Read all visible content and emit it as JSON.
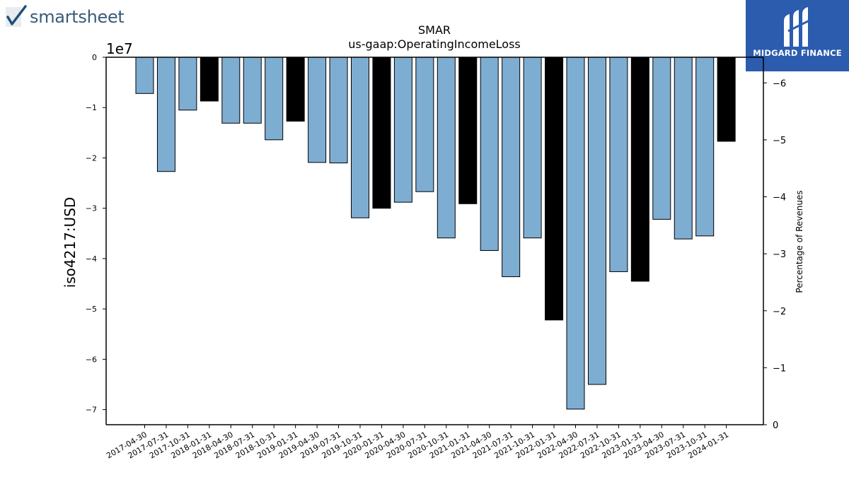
{
  "branding": {
    "left_logo_text": "smartsheet",
    "right_logo_text": "MIDGARD FINANCE",
    "left_logo_icon": "checkmark-icon",
    "right_logo_icon": "midgard-m-icon"
  },
  "chart_data": {
    "type": "bar",
    "title": "SMAR",
    "subtitle": "us-gaap:OperatingIncomeLoss",
    "ylabel": "iso4217:USD",
    "y2label": "Percentage of Revenues",
    "offset_label": "1e7",
    "ylim": [
      -7.3,
      0
    ],
    "y2lim": [
      0,
      -6.45
    ],
    "yticks": [
      0,
      -1,
      -2,
      -3,
      -4,
      -5,
      -6,
      -7
    ],
    "y2ticks": [
      0,
      -1,
      -2,
      -3,
      -4,
      -5,
      -6
    ],
    "ytick_labels": [
      "0",
      "−1",
      "−2",
      "−3",
      "−4",
      "−5",
      "−6",
      "−7"
    ],
    "y2tick_labels": [
      "0",
      "−1",
      "−2",
      "−3",
      "−4",
      "−5",
      "−6"
    ],
    "categories": [
      "2017-04-30",
      "2017-07-31",
      "2017-10-31",
      "2018-01-31",
      "2018-04-30",
      "2018-07-31",
      "2018-10-31",
      "2019-01-31",
      "2019-04-30",
      "2019-07-31",
      "2019-10-31",
      "2020-01-31",
      "2020-04-30",
      "2020-07-31",
      "2020-10-31",
      "2021-01-31",
      "2021-04-30",
      "2021-07-31",
      "2021-10-31",
      "2022-01-31",
      "2022-04-30",
      "2022-07-31",
      "2022-10-31",
      "2023-01-31",
      "2023-04-30",
      "2023-07-31",
      "2023-10-31",
      "2024-01-31"
    ],
    "values": [
      -0.72,
      -2.27,
      -1.05,
      -0.87,
      -1.31,
      -1.31,
      -1.64,
      -1.27,
      -2.09,
      -2.1,
      -3.19,
      -3.0,
      -2.88,
      -2.67,
      -3.59,
      -2.91,
      -3.84,
      -4.36,
      -3.59,
      -5.22,
      -6.99,
      -6.5,
      -4.26,
      -4.45,
      -3.22,
      -3.61,
      -3.55,
      -1.67
    ],
    "highlight": [
      false,
      false,
      false,
      true,
      false,
      false,
      false,
      true,
      false,
      false,
      false,
      true,
      false,
      false,
      false,
      true,
      false,
      false,
      false,
      true,
      false,
      false,
      false,
      true,
      false,
      false,
      false,
      true
    ],
    "colors": {
      "bar": "#7eadd2",
      "highlight": "#000000",
      "edge": "#000000"
    },
    "grid": false,
    "legend": "none"
  }
}
